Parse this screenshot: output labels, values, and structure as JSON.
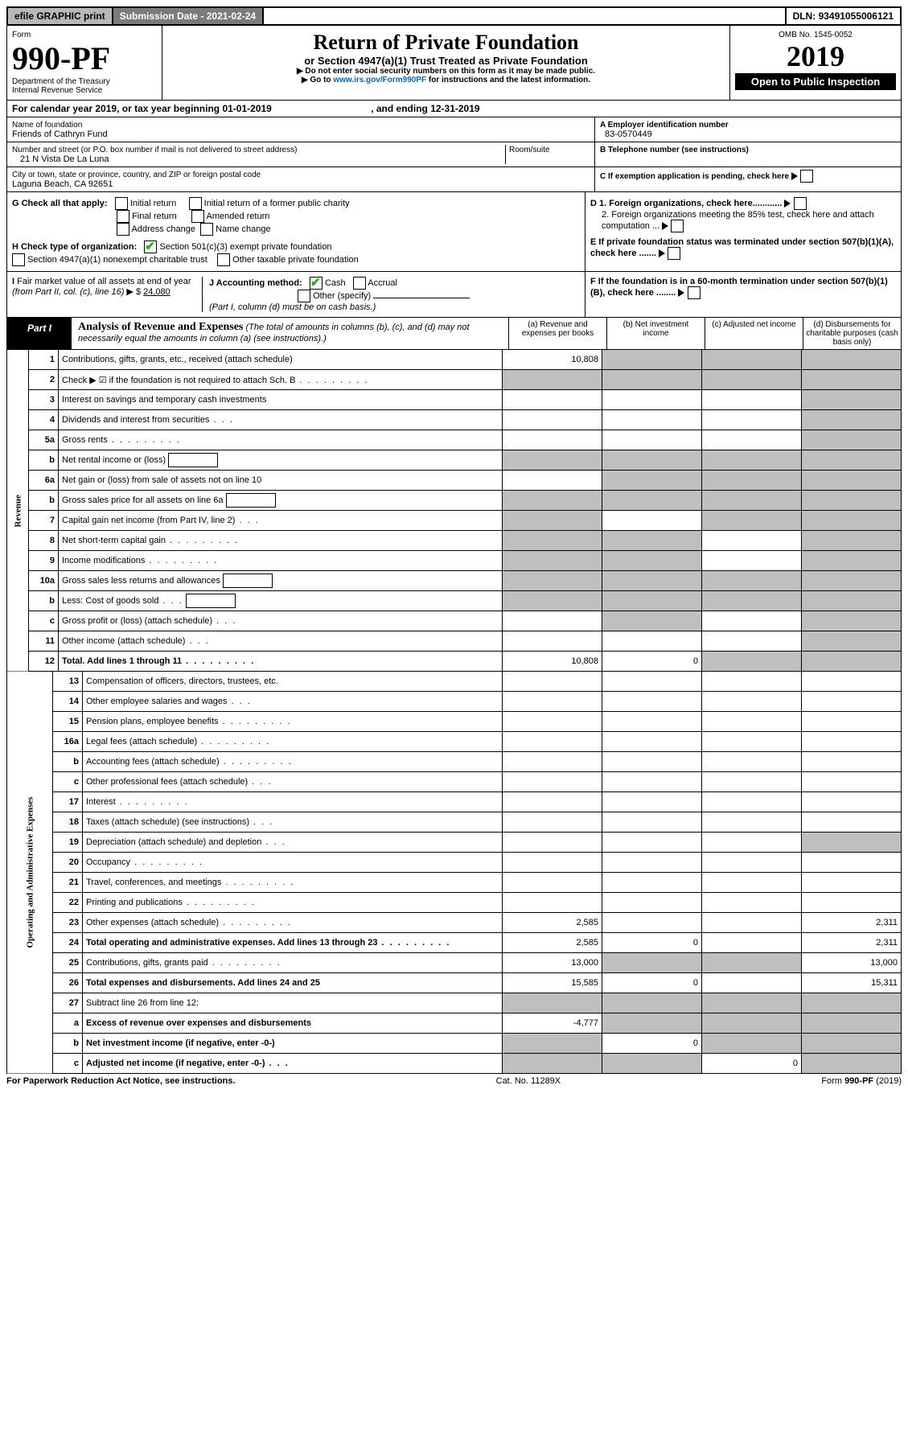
{
  "top": {
    "efile": "efile GRAPHIC print",
    "subdate_lbl": "Submission Date - ",
    "subdate": "2021-02-24",
    "dln_lbl": "DLN: ",
    "dln": "93491055006121"
  },
  "hdr": {
    "form_word": "Form",
    "form_no": "990-PF",
    "dept": "Department of the Treasury",
    "irs": "Internal Revenue Service",
    "title": "Return of Private Foundation",
    "sub": "or Section 4947(a)(1) Trust Treated as Private Foundation",
    "warn": "▶ Do not enter social security numbers on this form as it may be made public.",
    "goto": "▶ Go to ",
    "link": "www.irs.gov/Form990PF",
    "goto2": " for instructions and the latest information.",
    "omb": "OMB No. 1545-0052",
    "year": "2019",
    "open": "Open to Public Inspection"
  },
  "cal": {
    "text": "For calendar year 2019, or tax year beginning ",
    "begin": "01-01-2019",
    "mid": " , and ending ",
    "end": "12-31-2019"
  },
  "id": {
    "name_lbl": "Name of foundation",
    "name": "Friends of Cathryn Fund",
    "addr_lbl": "Number and street (or P.O. box number if mail is not delivered to street address)",
    "room_lbl": "Room/suite",
    "addr": "21 N Vista De La Luna",
    "city_lbl": "City or town, state or province, country, and ZIP or foreign postal code",
    "city": "Laguna Beach, CA  92651",
    "a_lbl": "A Employer identification number",
    "ein": "83-0570449",
    "b_lbl": "B Telephone number (see instructions)",
    "phone": "",
    "c_lbl": "C If exemption application is pending, check here",
    "d1": "D 1. Foreign organizations, check here............",
    "d2": "2. Foreign organizations meeting the 85% test, check here and attach computation ...",
    "e": "E  If private foundation status was terminated under section 507(b)(1)(A), check here .......",
    "f": "F  If the foundation is in a 60-month termination under section 507(b)(1)(B), check here ........"
  },
  "g": {
    "lbl": "G Check all that apply:",
    "opts": [
      "Initial return",
      "Final return",
      "Address change",
      "Initial return of a former public charity",
      "Amended return",
      "Name change"
    ]
  },
  "h": {
    "lbl": "H Check type of organization:",
    "o1": "Section 501(c)(3) exempt private foundation",
    "o2": "Section 4947(a)(1) nonexempt charitable trust",
    "o3": "Other taxable private foundation"
  },
  "i": {
    "lbl": "I Fair market value of all assets at end of year (from Part II, col. (c), line 16) ▶ $",
    "val": "24,080"
  },
  "j": {
    "lbl": "J Accounting method:",
    "o1": "Cash",
    "o2": "Accrual",
    "o3": "Other (specify)",
    "note": "(Part I, column (d) must be on cash basis.)"
  },
  "part1": {
    "tab": "Part I",
    "title": "Analysis of Revenue and Expenses",
    "note": "(The total of amounts in columns (b), (c), and (d) may not necessarily equal the amounts in column (a) (see instructions).)",
    "cols": {
      "a": "(a) Revenue and expenses per books",
      "b": "(b) Net investment income",
      "c": "(c) Adjusted net income",
      "d": "(d) Disbursements for charitable purposes (cash basis only)"
    }
  },
  "sec_rev": "Revenue",
  "sec_exp": "Operating and Administrative Expenses",
  "rows": [
    {
      "n": "1",
      "d": "Contributions, gifts, grants, etc., received (attach schedule)",
      "a": "10,808",
      "bsh": 1,
      "csh": 1,
      "dsh": 1
    },
    {
      "n": "2",
      "d": "Check ▶ ☑ if the foundation is not required to attach Sch. B",
      "dots": 1,
      "ah": 0,
      "ash": 1,
      "bsh": 1,
      "csh": 1,
      "dsh": 1
    },
    {
      "n": "3",
      "d": "Interest on savings and temporary cash investments",
      "dsh": 1
    },
    {
      "n": "4",
      "d": "Dividends and interest from securities",
      "dots3": 1,
      "dsh": 1
    },
    {
      "n": "5a",
      "d": "Gross rents",
      "dots": 1,
      "dsh": 1
    },
    {
      "n": "b",
      "d": "Net rental income or (loss)",
      "inbox": 1,
      "ash": 1,
      "bsh": 1,
      "csh": 1,
      "dsh": 1
    },
    {
      "n": "6a",
      "d": "Net gain or (loss) from sale of assets not on line 10",
      "bsh": 1,
      "csh": 1,
      "dsh": 1
    },
    {
      "n": "b",
      "d": "Gross sales price for all assets on line 6a",
      "inbox": 1,
      "ash": 1,
      "bsh": 1,
      "csh": 1,
      "dsh": 1
    },
    {
      "n": "7",
      "d": "Capital gain net income (from Part IV, line 2)",
      "dots3": 1,
      "ash": 1,
      "csh": 1,
      "dsh": 1
    },
    {
      "n": "8",
      "d": "Net short-term capital gain",
      "dots": 1,
      "ash": 1,
      "bsh": 1,
      "dsh": 1
    },
    {
      "n": "9",
      "d": "Income modifications",
      "dots": 1,
      "ash": 1,
      "bsh": 1,
      "dsh": 1
    },
    {
      "n": "10a",
      "d": "Gross sales less returns and allowances",
      "inbox": 1,
      "ash": 1,
      "bsh": 1,
      "csh": 1,
      "dsh": 1
    },
    {
      "n": "b",
      "d": "Less: Cost of goods sold",
      "dots3": 1,
      "inbox": 1,
      "ash": 1,
      "bsh": 1,
      "csh": 1,
      "dsh": 1
    },
    {
      "n": "c",
      "d": "Gross profit or (loss) (attach schedule)",
      "dots3": 1,
      "bsh": 1,
      "dsh": 1
    },
    {
      "n": "11",
      "d": "Other income (attach schedule)",
      "dots3": 1,
      "dsh": 1
    },
    {
      "n": "12",
      "d": "Total. Add lines 1 through 11",
      "dots": 1,
      "b": 1,
      "a": "10,808",
      "bval": "0",
      "csh": 1,
      "dsh": 1
    }
  ],
  "exp": [
    {
      "n": "13",
      "d": "Compensation of officers, directors, trustees, etc."
    },
    {
      "n": "14",
      "d": "Other employee salaries and wages",
      "dots3": 1
    },
    {
      "n": "15",
      "d": "Pension plans, employee benefits",
      "dots": 1
    },
    {
      "n": "16a",
      "d": "Legal fees (attach schedule)",
      "dots": 1
    },
    {
      "n": "b",
      "d": "Accounting fees (attach schedule)",
      "dots": 1
    },
    {
      "n": "c",
      "d": "Other professional fees (attach schedule)",
      "dots3": 1
    },
    {
      "n": "17",
      "d": "Interest",
      "dots": 1
    },
    {
      "n": "18",
      "d": "Taxes (attach schedule) (see instructions)",
      "dots3": 1
    },
    {
      "n": "19",
      "d": "Depreciation (attach schedule) and depletion",
      "dots3": 1,
      "dsh": 1
    },
    {
      "n": "20",
      "d": "Occupancy",
      "dots": 1
    },
    {
      "n": "21",
      "d": "Travel, conferences, and meetings",
      "dots": 1
    },
    {
      "n": "22",
      "d": "Printing and publications",
      "dots": 1
    },
    {
      "n": "23",
      "d": "Other expenses (attach schedule)",
      "dots": 1,
      "a": "2,585",
      "dval": "2,311"
    },
    {
      "n": "24",
      "d": "Total operating and administrative expenses. Add lines 13 through 23",
      "dots": 1,
      "b": 1,
      "a": "2,585",
      "bval": "0",
      "dval": "2,311"
    },
    {
      "n": "25",
      "d": "Contributions, gifts, grants paid",
      "dots": 1,
      "a": "13,000",
      "bsh": 1,
      "csh": 1,
      "dval": "13,000"
    },
    {
      "n": "26",
      "d": "Total expenses and disbursements. Add lines 24 and 25",
      "b": 1,
      "a": "15,585",
      "bval": "0",
      "dval": "15,311"
    },
    {
      "n": "27",
      "d": "Subtract line 26 from line 12:",
      "ash": 1,
      "bsh": 1,
      "csh": 1,
      "dsh": 1
    },
    {
      "n": "a",
      "d": "Excess of revenue over expenses and disbursements",
      "b": 1,
      "a": "-4,777",
      "bsh": 1,
      "csh": 1,
      "dsh": 1
    },
    {
      "n": "b",
      "d": "Net investment income (if negative, enter -0-)",
      "b": 1,
      "ash": 1,
      "bval": "0",
      "csh": 1,
      "dsh": 1
    },
    {
      "n": "c",
      "d": "Adjusted net income (if negative, enter -0-)",
      "dots3": 1,
      "b": 1,
      "ash": 1,
      "bsh": 1,
      "cval": "0",
      "dsh": 1
    }
  ],
  "foot": {
    "l": "For Paperwork Reduction Act Notice, see instructions.",
    "c": "Cat. No. 11289X",
    "r": "Form 990-PF (2019)"
  }
}
